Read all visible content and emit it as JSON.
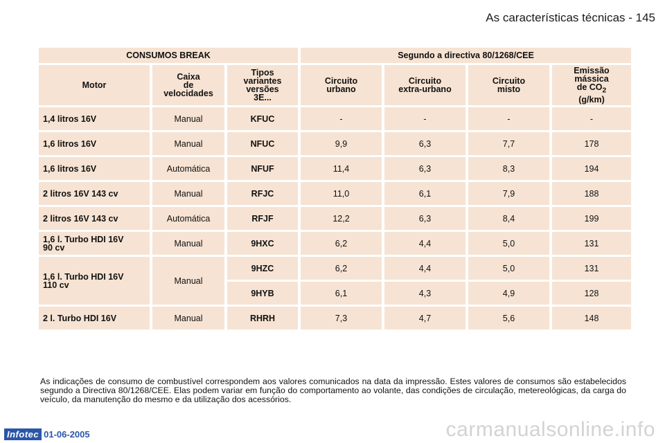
{
  "header": {
    "title": "As características técnicas - 145"
  },
  "table": {
    "title_left": "CONSUMOS BREAK",
    "title_right": "Segundo a directiva 80/1268/CEE",
    "head": {
      "motor": "Motor",
      "caixa": [
        "Caixa",
        "de",
        "velocidades"
      ],
      "tipos": [
        "Tipos",
        "variantes",
        "versões",
        "3E..."
      ],
      "urbano": [
        "Circuito",
        "urbano"
      ],
      "extra": [
        "Circuito",
        "extra-urbano"
      ],
      "misto": [
        "Circuito",
        "misto"
      ],
      "emissao": [
        "Emissão",
        "mássica",
        "de CO",
        "2",
        "(g/km)"
      ]
    },
    "rows": [
      {
        "motor": "1,4 litros 16V",
        "caixa": "Manual",
        "tipo": "KFUC",
        "urbano": "-",
        "extra": "-",
        "misto": "-",
        "co2": "-"
      },
      {
        "motor": "1,6 litros 16V",
        "caixa": "Manual",
        "tipo": "NFUC",
        "urbano": "9,9",
        "extra": "6,3",
        "misto": "7,7",
        "co2": "178"
      },
      {
        "motor": "1,6 litros 16V",
        "caixa": "Automática",
        "tipo": "NFUF",
        "urbano": "11,4",
        "extra": "6,3",
        "misto": "8,3",
        "co2": "194"
      },
      {
        "motor": "2 litros 16V 143 cv",
        "caixa": "Manual",
        "tipo": "RFJC",
        "urbano": "11,0",
        "extra": "6,1",
        "misto": "7,9",
        "co2": "188"
      },
      {
        "motor": "2 litros 16V 143 cv",
        "caixa": "Automática",
        "tipo": "RFJF",
        "urbano": "12,2",
        "extra": "6,3",
        "misto": "8,4",
        "co2": "199"
      },
      {
        "motor": [
          "1,6 l. Turbo HDI 16V",
          "90 cv"
        ],
        "caixa": "Manual",
        "tipo": "9HXC",
        "urbano": "6,2",
        "extra": "4,4",
        "misto": "5,0",
        "co2": "131"
      },
      {
        "motor": [
          "1,6 l. Turbo HDI 16V",
          "110 cv"
        ],
        "caixa": "Manual",
        "tipo": "9HZC",
        "urbano": "6,2",
        "extra": "4,4",
        "misto": "5,0",
        "co2": "131"
      },
      {
        "tipo": "9HYB",
        "urbano": "6,1",
        "extra": "4,3",
        "misto": "4,9",
        "co2": "128"
      },
      {
        "motor": "2 l. Turbo HDI 16V",
        "caixa": "Manual",
        "tipo": "RHRH",
        "urbano": "7,3",
        "extra": "4,7",
        "misto": "5,6",
        "co2": "148"
      }
    ]
  },
  "footnote": "As indicações de consumo de combustível correspondem aos valores comunicados na data da impressão. Estes valores de consumos são estabelecidos segundo a Directiva 80/1268/CEE. Elas podem variar em função do comportamento ao volante, das condições de circulação, metereológicas, da carga do veículo, da manutenção do mesmo e da utilização dos acessórios.",
  "footer": {
    "logo": "Infotec",
    "date": "01-06-2005"
  },
  "watermark": "carmanualsonline.info",
  "colors": {
    "cell_bg": "#f6e3d3",
    "logo_blue": "#2b56a8"
  }
}
